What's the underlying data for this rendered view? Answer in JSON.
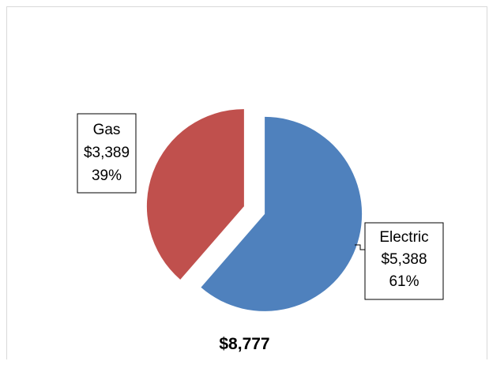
{
  "chart_data": {
    "type": "pie",
    "title": "",
    "total_label": "$8,777",
    "slices": [
      {
        "name": "Electric",
        "value": 5388,
        "value_label": "$5,388",
        "percent_label": "61%",
        "color": "#4F81BD"
      },
      {
        "name": "Gas",
        "value": 3389,
        "value_label": "$3,389",
        "percent_label": "39%",
        "color": "#C0504D"
      }
    ],
    "exploded": true,
    "legend": "none",
    "data_labels": "boxed-outside"
  }
}
